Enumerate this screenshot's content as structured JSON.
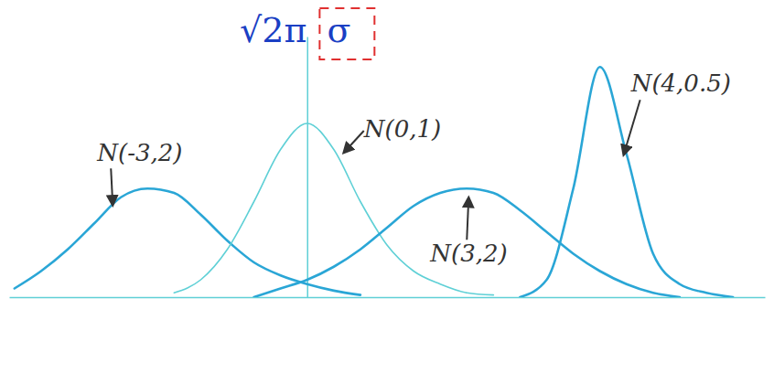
{
  "chart_data": {
    "type": "line",
    "tick_labels": false,
    "xlim": [
      -5.6,
      8.6
    ],
    "ylim": [
      0,
      0.6
    ],
    "xticks": [],
    "yticks": [],
    "x": [
      -5.5,
      -5,
      -4.5,
      -4,
      -3.5,
      -3,
      -2.5,
      -2,
      -1.5,
      -1,
      -0.5,
      0,
      0.5,
      1,
      1.5,
      2,
      2.5,
      3,
      3.5,
      4,
      4.5,
      5,
      5.5,
      6,
      6.5,
      7,
      7.5,
      8,
      8.5
    ],
    "series": [
      {
        "name": "N(-3,2)",
        "color": "#2aa6d6",
        "values": [
          0.02,
          0.06,
          0.11,
          0.17,
          0.23,
          0.25,
          0.24,
          0.19,
          0.13,
          0.08,
          0.05,
          0.03,
          0.015,
          0.005,
          null,
          null,
          null,
          null,
          null,
          null,
          null,
          null,
          null,
          null,
          null,
          null,
          null,
          null,
          null
        ]
      },
      {
        "name": "N(0,1)",
        "color": "#5fd0d6",
        "values": [
          null,
          null,
          null,
          null,
          null,
          null,
          0.01,
          0.04,
          0.11,
          0.22,
          0.34,
          0.4,
          0.34,
          0.22,
          0.12,
          0.06,
          0.03,
          0.01,
          0.005,
          null,
          null,
          null,
          null,
          null,
          null,
          null,
          null,
          null,
          null
        ]
      },
      {
        "name": "N(3,2)",
        "color": "#2aa6d6",
        "values": [
          null,
          null,
          null,
          null,
          null,
          null,
          null,
          null,
          null,
          0.0,
          0.02,
          0.04,
          0.07,
          0.11,
          0.16,
          0.21,
          0.24,
          0.25,
          0.24,
          0.2,
          0.15,
          0.1,
          0.06,
          0.03,
          0.01,
          0.0,
          null,
          null,
          null
        ]
      },
      {
        "name": "N(4,0.5)",
        "color": "#2aa6d6",
        "values": [
          null,
          null,
          null,
          null,
          null,
          null,
          null,
          null,
          null,
          null,
          null,
          null,
          null,
          null,
          null,
          null,
          null,
          null,
          null,
          0.0,
          0.04,
          0.25,
          0.53,
          0.33,
          0.1,
          0.03,
          0.01,
          0.0,
          null
        ]
      }
    ],
    "annotations": [
      "√2π",
      "σ"
    ]
  }
}
